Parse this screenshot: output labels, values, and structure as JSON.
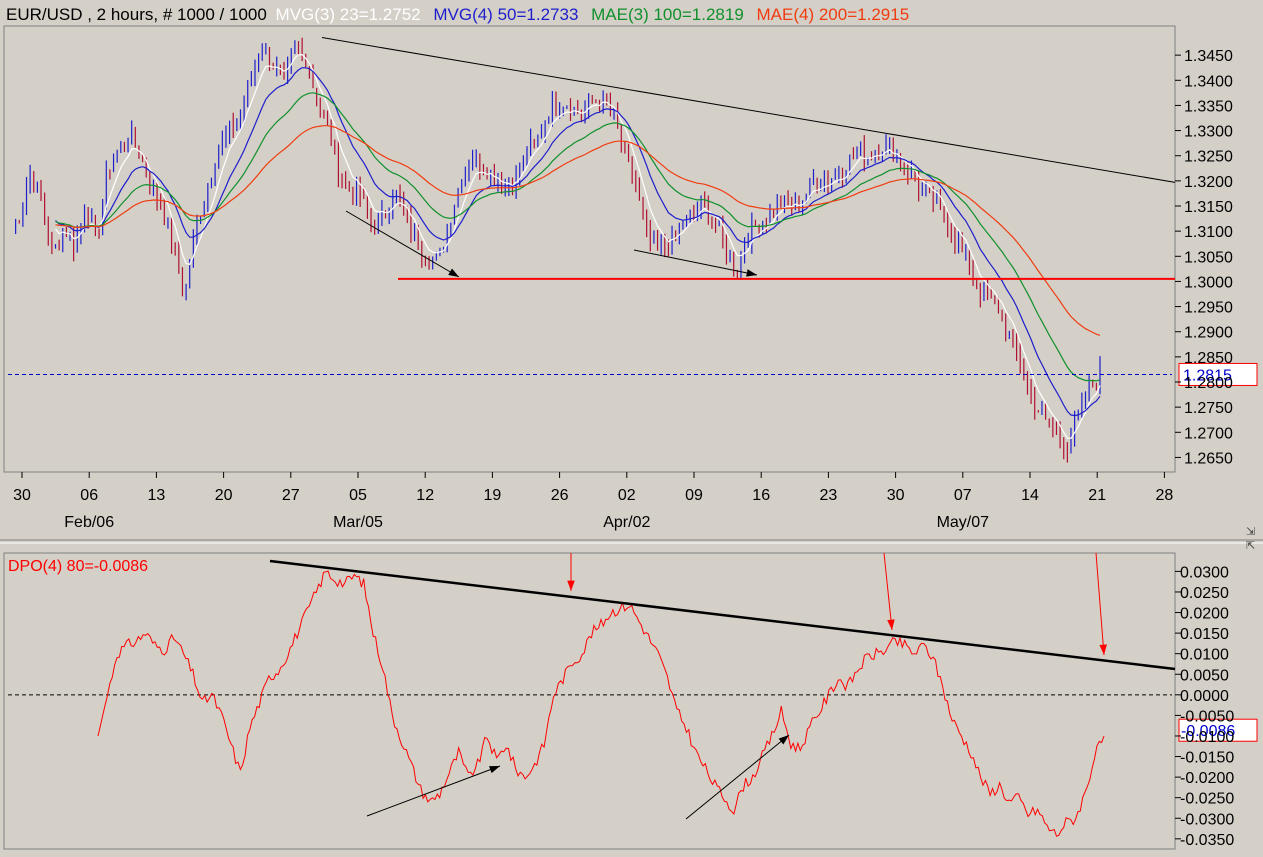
{
  "chart_data": [
    {
      "type": "candlestick",
      "symbol": "EUR/USD",
      "timeframe": "2 hours",
      "bars_label": "# 1000 / 1000",
      "header": {
        "symbol_text": "EUR/USD , 2 hours, # 1000 / 1000",
        "ind1_text": "MVG(3) 23=1.2752",
        "ind2_text": "MVG(4) 50=1.2733",
        "ind3_text": "MAE(3) 100=1.2819",
        "ind4_text": "MAE(4) 200=1.2915"
      },
      "ylim": [
        1.2625,
        1.35
      ],
      "y_ticks": [
        "1.3450",
        "1.3400",
        "1.3350",
        "1.3300",
        "1.3250",
        "1.3200",
        "1.3150",
        "1.3100",
        "1.3050",
        "1.3000",
        "1.2950",
        "1.2900",
        "1.2850",
        "1.2800",
        "1.2750",
        "1.2700",
        "1.2650"
      ],
      "x_ticks": [
        "30",
        "06",
        "13",
        "20",
        "27",
        "05",
        "12",
        "19",
        "26",
        "02",
        "09",
        "16",
        "23",
        "30",
        "07",
        "14",
        "21",
        "28"
      ],
      "month_labels": [
        "Feb/06",
        "Mar/05",
        "Apr/02",
        "May/07"
      ],
      "last_price": 1.2815,
      "last_price_text": "1.2815",
      "resistance_level": 1.3005,
      "series": [
        {
          "name": "MVG(3) 23",
          "color": "#ffffff",
          "last": 1.2752
        },
        {
          "name": "MVG(4) 50",
          "color": "#1e1ecc",
          "last": 1.2733
        },
        {
          "name": "MAE(3) 100",
          "color": "#10902c",
          "last": 1.2819
        },
        {
          "name": "MAE(4) 200",
          "color": "#f03c10",
          "last": 1.2915
        }
      ],
      "price_path": [
        [
          0,
          1.31
        ],
        [
          2,
          1.313
        ],
        [
          5,
          1.322
        ],
        [
          8,
          1.316
        ],
        [
          11,
          1.305
        ],
        [
          14,
          1.311
        ],
        [
          17,
          1.307
        ],
        [
          20,
          1.315
        ],
        [
          23,
          1.308
        ],
        [
          26,
          1.322
        ],
        [
          29,
          1.326
        ],
        [
          32,
          1.329
        ],
        [
          35,
          1.325
        ],
        [
          38,
          1.318
        ],
        [
          41,
          1.315
        ],
        [
          44,
          1.306
        ],
        [
          47,
          1.297
        ],
        [
          50,
          1.311
        ],
        [
          53,
          1.318
        ],
        [
          56,
          1.326
        ],
        [
          59,
          1.33
        ],
        [
          62,
          1.333
        ],
        [
          65,
          1.34
        ],
        [
          68,
          1.347
        ],
        [
          71,
          1.343
        ],
        [
          74,
          1.339
        ],
        [
          77,
          1.347
        ],
        [
          80,
          1.344
        ],
        [
          83,
          1.336
        ],
        [
          86,
          1.33
        ],
        [
          89,
          1.322
        ],
        [
          92,
          1.318
        ],
        [
          95,
          1.317
        ],
        [
          98,
          1.311
        ],
        [
          101,
          1.313
        ],
        [
          104,
          1.318
        ],
        [
          107,
          1.313
        ],
        [
          110,
          1.308
        ],
        [
          113,
          1.305
        ],
        [
          116,
          1.304
        ],
        [
          119,
          1.312
        ],
        [
          122,
          1.32
        ],
        [
          125,
          1.325
        ],
        [
          128,
          1.323
        ],
        [
          131,
          1.321
        ],
        [
          134,
          1.319
        ],
        [
          137,
          1.32
        ],
        [
          140,
          1.326
        ],
        [
          143,
          1.328
        ],
        [
          146,
          1.334
        ],
        [
          149,
          1.336
        ],
        [
          152,
          1.335
        ],
        [
          155,
          1.333
        ],
        [
          158,
          1.336
        ],
        [
          161,
          1.336
        ],
        [
          164,
          1.332
        ],
        [
          167,
          1.325
        ],
        [
          170,
          1.318
        ],
        [
          173,
          1.308
        ],
        [
          176,
          1.306
        ],
        [
          179,
          1.307
        ],
        [
          182,
          1.311
        ],
        [
          185,
          1.313
        ],
        [
          188,
          1.316
        ],
        [
          191,
          1.312
        ],
        [
          194,
          1.307
        ],
        [
          197,
          1.302
        ],
        [
          200,
          1.309
        ],
        [
          203,
          1.312
        ],
        [
          206,
          1.313
        ],
        [
          209,
          1.316
        ],
        [
          212,
          1.315
        ],
        [
          215,
          1.316
        ],
        [
          218,
          1.32
        ],
        [
          221,
          1.32
        ],
        [
          224,
          1.321
        ],
        [
          227,
          1.323
        ],
        [
          230,
          1.326
        ],
        [
          233,
          1.325
        ],
        [
          236,
          1.327
        ],
        [
          239,
          1.326
        ],
        [
          242,
          1.324
        ],
        [
          245,
          1.321
        ],
        [
          248,
          1.317
        ],
        [
          251,
          1.316
        ],
        [
          254,
          1.312
        ],
        [
          257,
          1.308
        ],
        [
          260,
          1.304
        ],
        [
          263,
          1.298
        ],
        [
          266,
          1.296
        ],
        [
          269,
          1.294
        ],
        [
          272,
          1.288
        ],
        [
          275,
          1.282
        ],
        [
          278,
          1.276
        ],
        [
          281,
          1.272
        ],
        [
          284,
          1.27
        ],
        [
          287,
          1.267
        ],
        [
          290,
          1.273
        ],
        [
          293,
          1.279
        ],
        [
          296,
          1.282
        ]
      ],
      "annotation_points_note": ""
    },
    {
      "type": "line",
      "indicator_text": "DPO(4) 80=-0.0086",
      "last_value": -0.0086,
      "last_value_text": "-0.0086",
      "ylim": [
        -0.0365,
        0.0335
      ],
      "y_ticks": [
        "0.0300",
        "0.0250",
        "0.0200",
        "0.0150",
        "0.0100",
        "0.0050",
        "0.0000",
        "-0.0050",
        "-0.0100",
        "-0.0150",
        "-0.0200",
        "-0.0250",
        "-0.0300",
        "-0.0350"
      ],
      "zero_line": 0.0,
      "series": [
        {
          "name": "DPO(4) 80",
          "color": "#ff0000",
          "values": [
            -0.01,
            0.0,
            0.01,
            0.012,
            0.013,
            0.015,
            0.012,
            0.011,
            0.014,
            0.01,
            0.005,
            -0.002,
            0.0,
            -0.005,
            -0.012,
            -0.019,
            -0.008,
            -0.002,
            0.004,
            0.006,
            0.01,
            0.015,
            0.02,
            0.025,
            0.03,
            0.028,
            0.027,
            0.029,
            0.027,
            0.015,
            0.007,
            -0.005,
            -0.011,
            -0.017,
            -0.023,
            -0.026,
            -0.024,
            -0.019,
            -0.014,
            -0.02,
            -0.017,
            -0.01,
            -0.016,
            -0.012,
            -0.018,
            -0.02,
            -0.017,
            -0.012,
            0.0,
            0.004,
            0.008,
            0.01,
            0.015,
            0.017,
            0.02,
            0.021,
            0.022,
            0.018,
            0.014,
            0.01,
            0.004,
            -0.004,
            -0.008,
            -0.014,
            -0.018,
            -0.022,
            -0.025,
            -0.028,
            -0.022,
            -0.02,
            -0.015,
            -0.01,
            -0.004,
            -0.012,
            -0.013,
            -0.008,
            -0.004,
            0.0,
            0.004,
            0.002,
            0.006,
            0.009,
            0.01,
            0.011,
            0.013,
            0.012,
            0.01,
            0.012,
            0.009,
            0.002,
            -0.006,
            -0.01,
            -0.014,
            -0.02,
            -0.024,
            -0.022,
            -0.026,
            -0.025,
            -0.029,
            -0.028,
            -0.032,
            -0.034,
            -0.031,
            -0.03,
            -0.024,
            -0.015,
            -0.01
          ]
        }
      ]
    }
  ]
}
